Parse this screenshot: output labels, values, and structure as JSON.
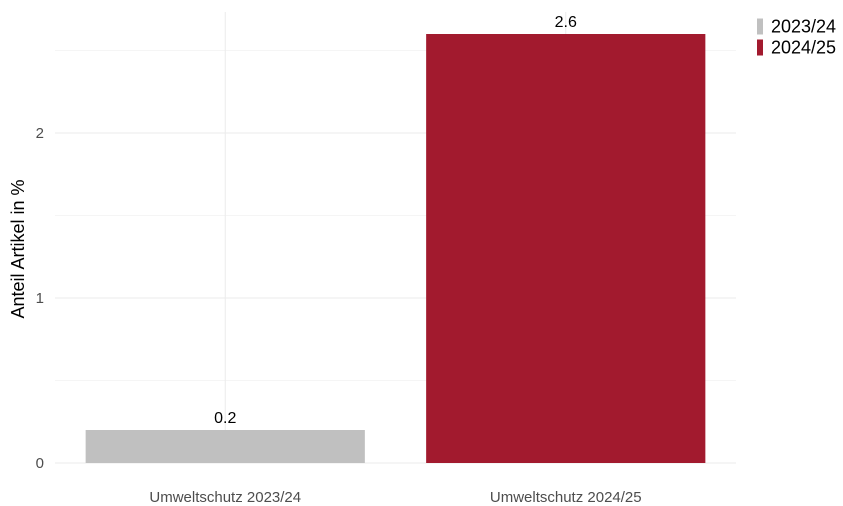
{
  "chart_data": {
    "type": "bar",
    "categories": [
      "Umweltschutz 2023/24",
      "Umweltschutz 2024/25"
    ],
    "values": [
      0.2,
      2.6
    ],
    "data_labels": [
      "0.2",
      "2.6"
    ],
    "colors": [
      "#c0c0c0",
      "#a21a2e"
    ],
    "xlabel": "",
    "ylabel": "Anteil Artikel in %",
    "ylim": [
      0,
      2.6
    ],
    "yticks": [
      0,
      1,
      2
    ],
    "ytick_labels": [
      "0",
      "1",
      "2"
    ],
    "grid": true,
    "legend": {
      "position": "top-right",
      "entries": [
        {
          "label": "2023/24",
          "color": "#c0c0c0"
        },
        {
          "label": "2024/25",
          "color": "#a21a2e"
        }
      ]
    }
  }
}
